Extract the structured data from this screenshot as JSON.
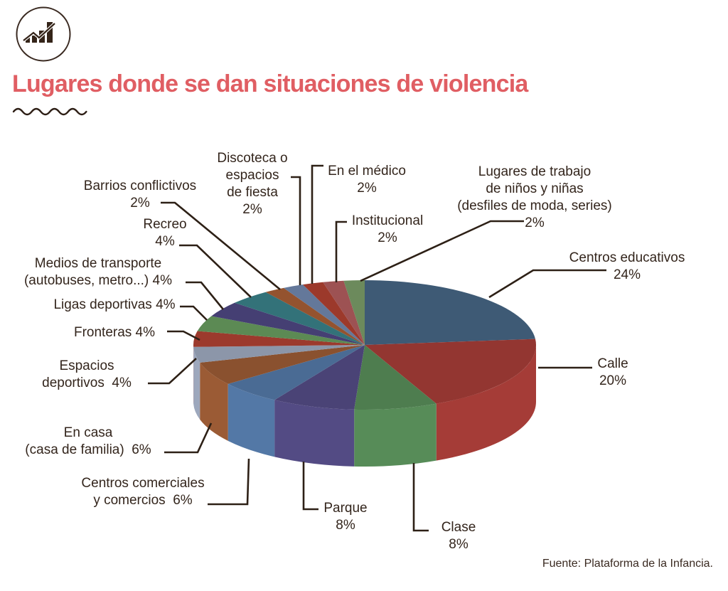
{
  "title": "Lugares donde se dan situaciones de violencia",
  "source": "Fuente: Plataforma de la Infancia.",
  "accent_color": "#E05E63",
  "text_color": "#33251C",
  "leader_line_color": "#2D2016",
  "logo": {
    "icon": "bar-chart-trend-icon"
  },
  "chart_data": {
    "type": "pie",
    "style": "3d",
    "title": "Lugares donde se dan situaciones de violencia",
    "unit": "%",
    "direction": "clockwise",
    "start_angle_deg": 0,
    "legend_position": "callout-labels",
    "slices": [
      {
        "id": "centros-educativos",
        "name": "Centros educativos",
        "value": 24,
        "color": "#3E5A75",
        "label_lines": [
          "Centros educativos",
          "24%"
        ]
      },
      {
        "id": "calle",
        "name": "Calle",
        "value": 20,
        "color": "#933631",
        "label_lines": [
          "Calle",
          "20%"
        ]
      },
      {
        "id": "clase",
        "name": "Clase",
        "value": 8,
        "color": "#4E7D4F",
        "label_lines": [
          "Clase",
          "8%"
        ]
      },
      {
        "id": "parque",
        "name": "Parque",
        "value": 8,
        "color": "#4A4376",
        "label_lines": [
          "Parque",
          "8%"
        ]
      },
      {
        "id": "centros-comerciales",
        "name": "Centros comerciales y comercios",
        "value": 6,
        "color": "#4A6B94",
        "label_lines": [
          "Centros comerciales",
          "y comercios  6%"
        ]
      },
      {
        "id": "en-casa",
        "name": "En casa (casa de familia)",
        "value": 6,
        "color": "#8A512F",
        "label_lines": [
          "En casa",
          "(casa de familia)  6%"
        ]
      },
      {
        "id": "espacios-deportivos",
        "name": "Espacios deportivos",
        "value": 4,
        "color": "#8C96A9",
        "label_lines": [
          "Espacios",
          "deportivos  4%"
        ]
      },
      {
        "id": "fronteras",
        "name": "Fronteras",
        "value": 4,
        "color": "#9C3A2D",
        "label_lines": [
          "Fronteras 4%"
        ]
      },
      {
        "id": "ligas-deportivas",
        "name": "Ligas deportivas",
        "value": 4,
        "color": "#5C8A54",
        "label_lines": [
          "Ligas deportivas 4%"
        ]
      },
      {
        "id": "medios-transporte",
        "name": "Medios de transporte (autobuses, metro...)",
        "value": 4,
        "color": "#453F73",
        "label_lines": [
          "Medios de transporte",
          "(autobuses, metro...) 4%"
        ]
      },
      {
        "id": "recreo",
        "name": "Recreo",
        "value": 4,
        "color": "#337279",
        "label_lines": [
          "Recreo",
          "4%"
        ]
      },
      {
        "id": "barrios-conflictivos",
        "name": "Barrios conflictivos",
        "value": 2,
        "color": "#94532F",
        "label_lines": [
          "Barrios conflictivos",
          "2%"
        ]
      },
      {
        "id": "discoteca",
        "name": "Discoteca o espacios de fiesta",
        "value": 2,
        "color": "#64789A",
        "label_lines": [
          "Discoteca o",
          "espacios",
          "de fiesta",
          "2%"
        ]
      },
      {
        "id": "en-el-medico",
        "name": "En el médico",
        "value": 2,
        "color": "#9C392B",
        "label_lines": [
          "En el médico",
          "2%"
        ]
      },
      {
        "id": "institucional",
        "name": "Institucional",
        "value": 2,
        "color": "#9D5253",
        "label_lines": [
          "Institucional",
          "2%"
        ]
      },
      {
        "id": "lugares-trabajo",
        "name": "Lugares de trabajo de niños y niñas (desfiles de moda, series)",
        "value": 2,
        "color": "#6C8A5C",
        "label_lines": [
          "Lugares de trabajo",
          "de niños y niñas",
          "(desfiles de moda, series)",
          "2%"
        ]
      }
    ]
  }
}
